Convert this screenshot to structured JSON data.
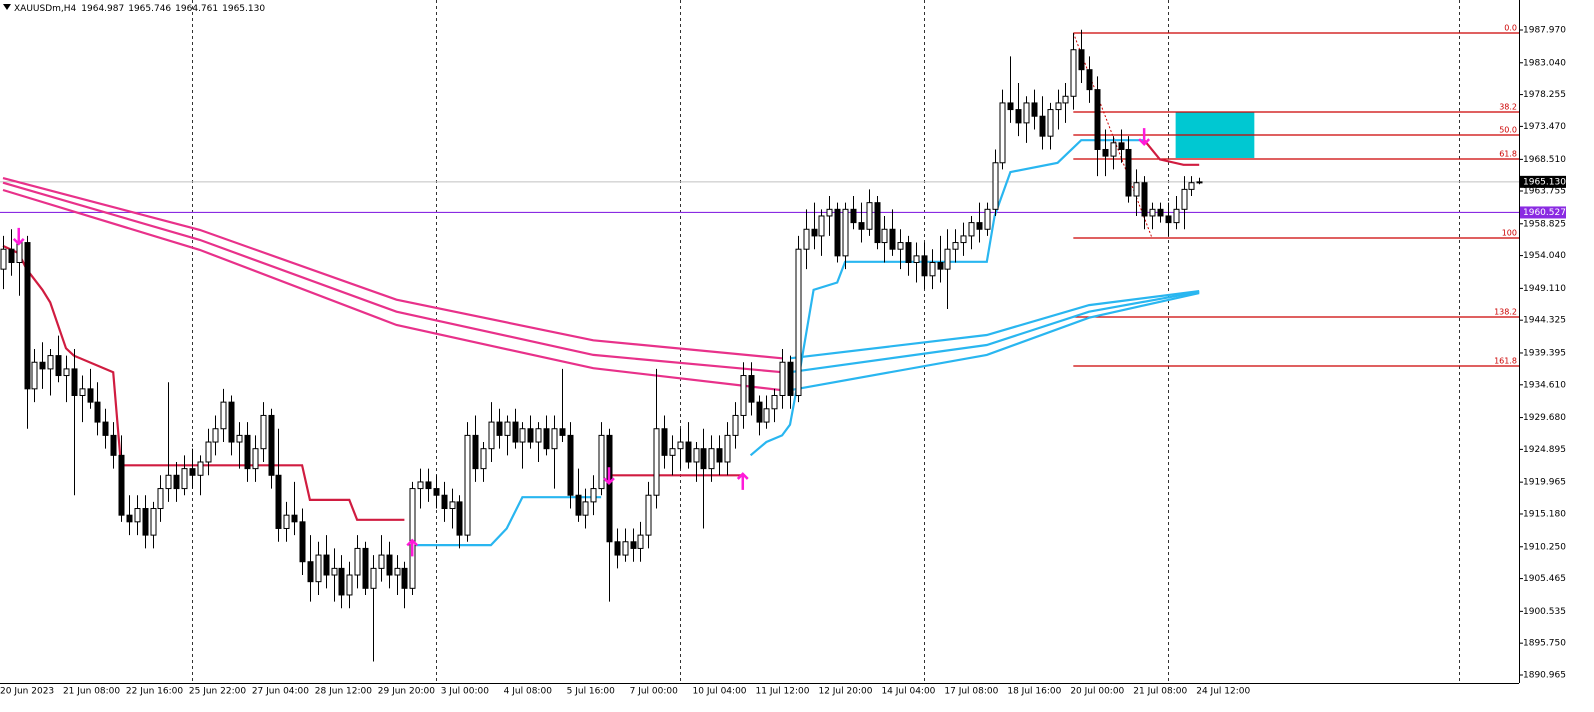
{
  "chart_data": {
    "type": "candlestick",
    "title": "XAUUSDm,H4",
    "header_values": [
      "1964.987",
      "1965.746",
      "1964.761",
      "1965.130"
    ],
    "ylim": [
      1889.76,
      1992.48
    ],
    "yticks": [
      {
        "value": 1987.97,
        "label": "1987.970"
      },
      {
        "value": 1983.04,
        "label": "1983.040"
      },
      {
        "value": 1978.255,
        "label": "1978.255"
      },
      {
        "value": 1973.47,
        "label": "1973.470"
      },
      {
        "value": 1968.51,
        "label": "1968.510"
      },
      {
        "value": 1963.755,
        "label": "1963.755"
      },
      {
        "value": 1958.825,
        "label": "1958.825"
      },
      {
        "value": 1954.04,
        "label": "1954.040"
      },
      {
        "value": 1949.11,
        "label": "1949.110"
      },
      {
        "value": 1944.325,
        "label": "1944.325"
      },
      {
        "value": 1939.395,
        "label": "1939.395"
      },
      {
        "value": 1934.61,
        "label": "1934.610"
      },
      {
        "value": 1929.68,
        "label": "1929.680"
      },
      {
        "value": 1924.895,
        "label": "1924.895"
      },
      {
        "value": 1919.965,
        "label": "1919.965"
      },
      {
        "value": 1915.18,
        "label": "1915.180"
      },
      {
        "value": 1910.25,
        "label": "1910.250"
      },
      {
        "value": 1905.465,
        "label": "1905.465"
      },
      {
        "value": 1900.535,
        "label": "1900.535"
      },
      {
        "value": 1895.75,
        "label": "1895.750"
      },
      {
        "value": 1890.965,
        "label": "1890.965"
      }
    ],
    "x_labels": [
      "20 Jun 2023",
      "21 Jun 08:00",
      "22 Jun 16:00",
      "25 Jun 22:00",
      "27 Jun 04:00",
      "28 Jun 12:00",
      "29 Jun 20:00",
      "3 Jul 00:00",
      "4 Jul 08:00",
      "5 Jul 16:00",
      "7 Jul 00:00",
      "10 Jul 04:00",
      "11 Jul 12:00",
      "12 Jul 20:00",
      "14 Jul 04:00",
      "17 Jul 08:00",
      "18 Jul 16:00",
      "20 Jul 00:00",
      "21 Jul 08:00",
      "24 Jul 12:00"
    ],
    "xgrid": [
      24,
      55,
      86,
      117,
      148,
      185
    ],
    "ohlc": [
      [
        1952,
        1957,
        1949,
        1955
      ],
      [
        1955,
        1958,
        1951,
        1953
      ],
      [
        1953,
        1957,
        1948,
        1956
      ],
      [
        1956,
        1957,
        1928,
        1934
      ],
      [
        1934,
        1940,
        1932,
        1938
      ],
      [
        1938,
        1941,
        1934,
        1937
      ],
      [
        1937,
        1940,
        1933,
        1939
      ],
      [
        1939,
        1942,
        1935,
        1936
      ],
      [
        1936,
        1939,
        1932,
        1937
      ],
      [
        1937,
        1940,
        1918,
        1933
      ],
      [
        1933,
        1936,
        1929,
        1934
      ],
      [
        1934,
        1937,
        1931,
        1932
      ],
      [
        1932,
        1935,
        1927,
        1929
      ],
      [
        1929,
        1931,
        1925,
        1927
      ],
      [
        1927,
        1929,
        1922,
        1924
      ],
      [
        1924,
        1927,
        1914,
        1915
      ],
      [
        1915,
        1918,
        1912,
        1914
      ],
      [
        1914,
        1918,
        1912,
        1916
      ],
      [
        1916,
        1918,
        1910,
        1912
      ],
      [
        1912,
        1917,
        1910,
        1916
      ],
      [
        1916,
        1921,
        1914,
        1919
      ],
      [
        1919,
        1935,
        1917,
        1921
      ],
      [
        1921,
        1923,
        1917,
        1919
      ],
      [
        1919,
        1924,
        1918,
        1922
      ],
      [
        1922,
        1925,
        1919,
        1921
      ],
      [
        1921,
        1924,
        1918,
        1923
      ],
      [
        1923,
        1928,
        1921,
        1926
      ],
      [
        1926,
        1930,
        1924,
        1928
      ],
      [
        1928,
        1934,
        1926,
        1932
      ],
      [
        1932,
        1933,
        1924,
        1926
      ],
      [
        1926,
        1929,
        1922,
        1927
      ],
      [
        1927,
        1929,
        1920,
        1922
      ],
      [
        1922,
        1927,
        1920,
        1925
      ],
      [
        1925,
        1932,
        1923,
        1930
      ],
      [
        1930,
        1931,
        1919,
        1921
      ],
      [
        1921,
        1928,
        1911,
        1913
      ],
      [
        1913,
        1917,
        1911,
        1915
      ],
      [
        1915,
        1920,
        1912,
        1914
      ],
      [
        1914,
        1916,
        1906,
        1908
      ],
      [
        1908,
        1912,
        1902,
        1905
      ],
      [
        1905,
        1911,
        1903,
        1909
      ],
      [
        1909,
        1912,
        1904,
        1906
      ],
      [
        1906,
        1910,
        1902,
        1907
      ],
      [
        1907,
        1909,
        1901,
        1903
      ],
      [
        1903,
        1908,
        1901,
        1906
      ],
      [
        1906,
        1912,
        1904,
        1910
      ],
      [
        1910,
        1911,
        1903,
        1904
      ],
      [
        1904,
        1909,
        1893,
        1907
      ],
      [
        1907,
        1912,
        1905,
        1909
      ],
      [
        1909,
        1911,
        1904,
        1906
      ],
      [
        1906,
        1909,
        1903,
        1907
      ],
      [
        1907,
        1908,
        1901,
        1904
      ],
      [
        1904,
        1920,
        1903,
        1919
      ],
      [
        1919,
        1922,
        1916,
        1920
      ],
      [
        1920,
        1922,
        1917,
        1919
      ],
      [
        1919,
        1921,
        1916,
        1918
      ],
      [
        1918,
        1920,
        1914,
        1916
      ],
      [
        1916,
        1919,
        1913,
        1917
      ],
      [
        1917,
        1918,
        1910,
        1912
      ],
      [
        1912,
        1929,
        1911,
        1927
      ],
      [
        1927,
        1930,
        1920,
        1922
      ],
      [
        1922,
        1926,
        1920,
        1925
      ],
      [
        1925,
        1932,
        1923,
        1929
      ],
      [
        1929,
        1931,
        1925,
        1927
      ],
      [
        1927,
        1930,
        1924,
        1929
      ],
      [
        1929,
        1931,
        1925,
        1926
      ],
      [
        1926,
        1929,
        1922,
        1928
      ],
      [
        1928,
        1930,
        1925,
        1926
      ],
      [
        1926,
        1929,
        1923,
        1928
      ],
      [
        1928,
        1930,
        1924,
        1925
      ],
      [
        1925,
        1930,
        1919,
        1928
      ],
      [
        1928,
        1937,
        1926,
        1927
      ],
      [
        1927,
        1929,
        1916,
        1918
      ],
      [
        1918,
        1922,
        1914,
        1915
      ],
      [
        1915,
        1919,
        1913,
        1917
      ],
      [
        1917,
        1921,
        1915,
        1919
      ],
      [
        1919,
        1929,
        1918,
        1927
      ],
      [
        1927,
        1928,
        1902,
        1911
      ],
      [
        1911,
        1913,
        1907,
        1909
      ],
      [
        1909,
        1913,
        1908,
        1911
      ],
      [
        1911,
        1913,
        1908,
        1910
      ],
      [
        1910,
        1914,
        1908,
        1912
      ],
      [
        1912,
        1920,
        1910,
        1918
      ],
      [
        1918,
        1937,
        1916,
        1928
      ],
      [
        1928,
        1930,
        1922,
        1924
      ],
      [
        1924,
        1927,
        1921,
        1925
      ],
      [
        1925,
        1928,
        1922,
        1926
      ],
      [
        1926,
        1929,
        1922,
        1923
      ],
      [
        1923,
        1926,
        1920,
        1925
      ],
      [
        1925,
        1928,
        1913,
        1922
      ],
      [
        1922,
        1927,
        1920,
        1925
      ],
      [
        1925,
        1927,
        1921,
        1923
      ],
      [
        1923,
        1929,
        1921,
        1927
      ],
      [
        1927,
        1932,
        1925,
        1930
      ],
      [
        1930,
        1938,
        1928,
        1936
      ],
      [
        1936,
        1938,
        1930,
        1932
      ],
      [
        1932,
        1933,
        1927,
        1929
      ],
      [
        1929,
        1933,
        1928,
        1931
      ],
      [
        1931,
        1934,
        1929,
        1933
      ],
      [
        1933,
        1940,
        1931,
        1938
      ],
      [
        1938,
        1939,
        1931,
        1933
      ],
      [
        1933,
        1957,
        1932,
        1955
      ],
      [
        1955,
        1961,
        1952,
        1958
      ],
      [
        1958,
        1962,
        1955,
        1957
      ],
      [
        1957,
        1961,
        1954,
        1960
      ],
      [
        1960,
        1963,
        1957,
        1961
      ],
      [
        1961,
        1962,
        1953,
        1954
      ],
      [
        1954,
        1962,
        1952,
        1961
      ],
      [
        1961,
        1963,
        1958,
        1959
      ],
      [
        1959,
        1962,
        1956,
        1958
      ],
      [
        1958,
        1964,
        1957,
        1962
      ],
      [
        1962,
        1963,
        1955,
        1956
      ],
      [
        1956,
        1960,
        1953,
        1958
      ],
      [
        1958,
        1961,
        1954,
        1955
      ],
      [
        1955,
        1958,
        1952,
        1956
      ],
      [
        1956,
        1957,
        1951,
        1953
      ],
      [
        1953,
        1956,
        1950,
        1954
      ],
      [
        1954,
        1956,
        1949,
        1951
      ],
      [
        1951,
        1955,
        1949,
        1953
      ],
      [
        1953,
        1957,
        1950,
        1952
      ],
      [
        1952,
        1958,
        1946,
        1955
      ],
      [
        1955,
        1958,
        1953,
        1956
      ],
      [
        1956,
        1959,
        1954,
        1957
      ],
      [
        1957,
        1960,
        1955,
        1959
      ],
      [
        1959,
        1962,
        1956,
        1958
      ],
      [
        1958,
        1962,
        1957,
        1961
      ],
      [
        1961,
        1970,
        1960,
        1968
      ],
      [
        1968,
        1979,
        1967,
        1977
      ],
      [
        1977,
        1984,
        1974,
        1976
      ],
      [
        1976,
        1980,
        1972,
        1974
      ],
      [
        1974,
        1978,
        1971,
        1977
      ],
      [
        1977,
        1979,
        1973,
        1975
      ],
      [
        1975,
        1978,
        1970,
        1972
      ],
      [
        1972,
        1977,
        1970,
        1976
      ],
      [
        1976,
        1979,
        1973,
        1977
      ],
      [
        1977,
        1980,
        1974,
        1978
      ],
      [
        1978,
        1987.5,
        1976,
        1985
      ],
      [
        1985,
        1988,
        1980,
        1982
      ],
      [
        1982,
        1984,
        1977,
        1979
      ],
      [
        1979,
        1981,
        1966,
        1970
      ],
      [
        1970,
        1973,
        1966,
        1969
      ],
      [
        1969,
        1972,
        1967,
        1971
      ],
      [
        1971,
        1973,
        1968,
        1970
      ],
      [
        1970,
        1972,
        1962,
        1963
      ],
      [
        1963,
        1967,
        1960,
        1965
      ],
      [
        1965,
        1966,
        1958,
        1960
      ],
      [
        1960,
        1962,
        1958,
        1961
      ],
      [
        1961,
        1962,
        1959,
        1960
      ],
      [
        1960,
        1962,
        1957,
        1959
      ],
      [
        1959,
        1963,
        1958,
        1961
      ],
      [
        1961,
        1966,
        1958,
        1964
      ],
      [
        1964,
        1966,
        1963,
        1965
      ],
      [
        1964.987,
        1965.746,
        1964.761,
        1965.13
      ]
    ],
    "lines": [
      {
        "color": "#e8318a",
        "x": [
          0,
          25,
          50,
          75,
          99
        ],
        "values": [
          1965.7,
          1957.9,
          1947.4,
          1941.3,
          1938.6
        ]
      },
      {
        "color": "#e8318a",
        "x": [
          0,
          25,
          50,
          75,
          99
        ],
        "values": [
          1965.0,
          1956.4,
          1945.6,
          1939.1,
          1936.5
        ]
      },
      {
        "color": "#e8318a",
        "x": [
          0,
          25,
          50,
          75,
          99
        ],
        "values": [
          1963.9,
          1954.9,
          1943.6,
          1937.1,
          1933.8
        ]
      },
      {
        "color": "#29b6f0",
        "x": [
          100,
          125,
          138,
          152
        ],
        "values": [
          1938.6,
          1942.1,
          1946.6,
          1948.7
        ]
      },
      {
        "color": "#29b6f0",
        "x": [
          100,
          125,
          138,
          152
        ],
        "values": [
          1936.5,
          1940.6,
          1945.6,
          1948.6
        ]
      },
      {
        "color": "#29b6f0",
        "x": [
          100,
          125,
          138,
          152
        ],
        "values": [
          1933.8,
          1939.1,
          1944.7,
          1948.4
        ]
      },
      {
        "color": "#d01c40",
        "x": [
          0,
          2,
          3,
          5,
          6,
          8,
          9,
          14,
          15,
          38,
          39,
          44,
          45,
          51
        ],
        "values": [
          1955.5,
          1954.4,
          1952,
          1948.9,
          1947,
          1940.1,
          1939,
          1936.5,
          1922.5,
          1922.5,
          1917.3,
          1917.3,
          1914.3,
          1914.3
        ]
      },
      {
        "color": "#29b6f0",
        "x": [
          52,
          62,
          64,
          66,
          76
        ],
        "values": [
          1910.5,
          1910.5,
          1913,
          1917.7,
          1917.7
        ]
      },
      {
        "color": "#d01c40",
        "x": [
          77,
          94
        ],
        "values": [
          1921,
          1921
        ]
      },
      {
        "color": "#29b6f0",
        "x": [
          95,
          97,
          99,
          100,
          101,
          103,
          106,
          107,
          125,
          126,
          128,
          134,
          137,
          145
        ],
        "values": [
          1924,
          1926,
          1927,
          1928.6,
          1935,
          1948.9,
          1950,
          1953.1,
          1953.1,
          1960,
          1966.6,
          1968,
          1971.4,
          1971.4
        ]
      },
      {
        "color": "#d01c40",
        "x": [
          145,
          147,
          150,
          152
        ],
        "values": [
          1971.4,
          1968.5,
          1967.7,
          1967.7
        ]
      }
    ],
    "signals": [
      {
        "x": 2,
        "price": 1957,
        "dir": "down"
      },
      {
        "x": 52,
        "price": 1910,
        "dir": "up"
      },
      {
        "x": 77,
        "price": 1921,
        "dir": "down"
      },
      {
        "x": 94,
        "price": 1920,
        "dir": "up"
      },
      {
        "x": 145,
        "price": 1972,
        "dir": "down"
      }
    ],
    "signal_color": "#ff1ad9",
    "zone": {
      "x": [
        149,
        159
      ],
      "y": [
        1968.72,
        1975.64
      ],
      "color": "#00c8d2"
    },
    "fib_color": "#cc0000",
    "fib_start": 136,
    "fib_end": 146,
    "fib_levels": [
      {
        "label": "0.0",
        "price": 1987.52
      },
      {
        "label": "38.2",
        "price": 1975.64
      },
      {
        "label": "50.0",
        "price": 1972.18
      },
      {
        "label": "61.8",
        "price": 1968.57
      },
      {
        "label": "100",
        "price": 1956.69
      },
      {
        "label": "138.2",
        "price": 1944.81
      },
      {
        "label": "161.8",
        "price": 1937.44
      }
    ],
    "bid": {
      "value": 1965.13,
      "label": "1965.130"
    },
    "hline": {
      "value": 1960.527,
      "label": "1960.527",
      "color": "#8a2be2"
    },
    "grid": true
  }
}
